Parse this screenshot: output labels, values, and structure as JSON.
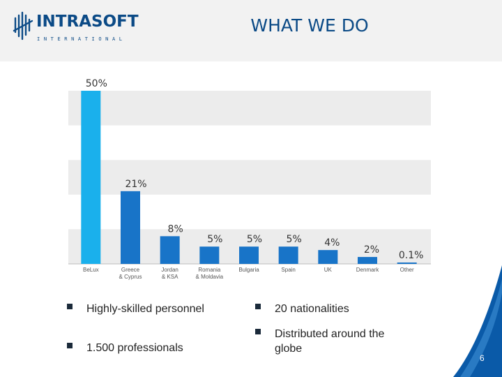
{
  "header": {
    "logo_text": "INTRASOFT",
    "logo_subtext": "INTERNATIONAL",
    "title": "WHAT WE DO"
  },
  "chart_data": {
    "type": "bar",
    "categories": [
      "BeLux",
      "Greece & Cyprus",
      "Jordan & KSA",
      "Romania & Moldavia",
      "Bulgaria",
      "Spain",
      "UK",
      "Denmark",
      "Other"
    ],
    "category_lines": [
      [
        "BeLux"
      ],
      [
        "Greece",
        "& Cyprus"
      ],
      [
        "Jordan",
        "& KSA"
      ],
      [
        "Romania",
        "& Moldavia"
      ],
      [
        "Bulgaria"
      ],
      [
        "Spain"
      ],
      [
        "UK"
      ],
      [
        "Denmark"
      ],
      [
        "Other"
      ]
    ],
    "values": [
      50,
      21,
      8,
      5,
      5,
      5,
      4,
      2,
      0.1
    ],
    "value_labels": [
      "50%",
      "21%",
      "8%",
      "5%",
      "5%",
      "5%",
      "4%",
      "2%",
      "0.1%"
    ],
    "ylim": [
      0,
      50
    ],
    "grid": "alternating-bands",
    "colors": {
      "highlight": "#1ab0ec",
      "bar": "#1874c8",
      "band": "#ececec",
      "label": "#333333"
    }
  },
  "bullets": {
    "left": [
      "Highly-skilled personnel",
      "1.500 professionals"
    ],
    "right": [
      "20 nationalities",
      "Distributed around the globe"
    ]
  },
  "footer": {
    "page_number": "6",
    "accent_color": "#0a5aa8"
  }
}
